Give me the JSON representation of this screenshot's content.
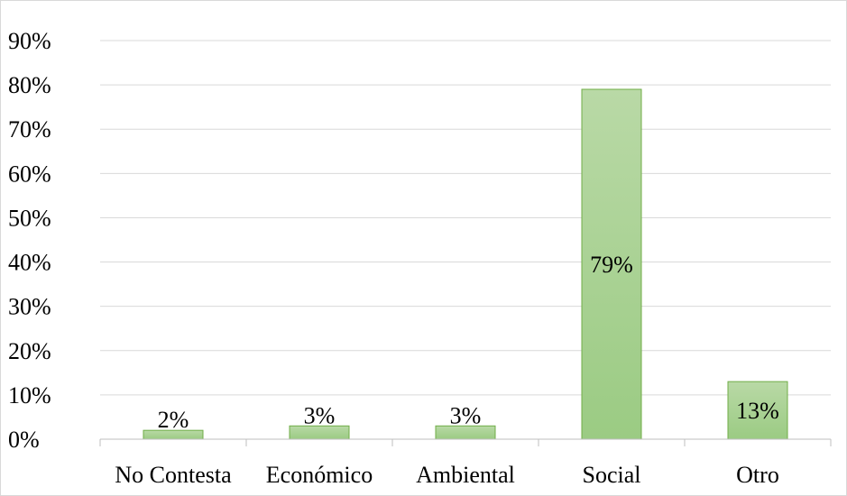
{
  "chart_data": {
    "type": "bar",
    "title": "",
    "xlabel": "",
    "ylabel": "",
    "categories": [
      "No Contesta",
      "Económico",
      "Ambiental",
      "Social",
      "Otro"
    ],
    "values": [
      0.02,
      0.03,
      0.03,
      0.79,
      0.13
    ],
    "data_labels": [
      "2%",
      "3%",
      "3%",
      "79%",
      "13%"
    ],
    "ylim": [
      0,
      0.9
    ],
    "yticks": [
      0,
      0.1,
      0.2,
      0.3,
      0.4,
      0.5,
      0.6,
      0.7,
      0.8,
      0.9
    ],
    "ytick_labels": [
      "0%",
      "10%",
      "20%",
      "30%",
      "40%",
      "50%",
      "60%",
      "70%",
      "80%",
      "90%"
    ],
    "grid": true,
    "legend": "none",
    "colors": {
      "bar_fill_top": "#b9d9a6",
      "bar_fill_bottom": "#9bcb83",
      "bar_stroke": "#70ad47",
      "gridline": "#d9d9d9",
      "axis": "#bfbfbf"
    }
  }
}
